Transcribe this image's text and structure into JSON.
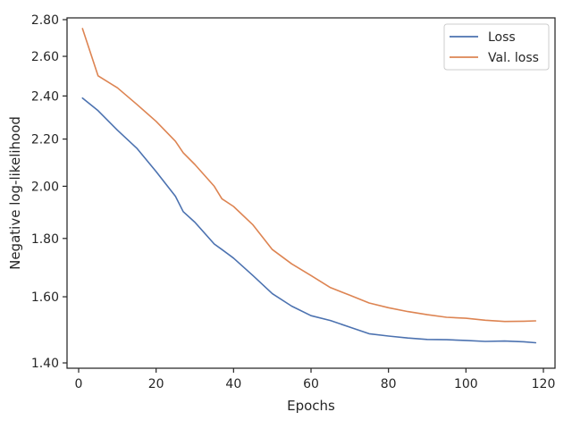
{
  "chart_data": {
    "type": "line",
    "xlabel": "Epochs",
    "ylabel": "Negative log-likelihood",
    "xlim": [
      -3,
      123
    ],
    "ylim": [
      1.385,
      2.81
    ],
    "y_scale": "log",
    "x_ticks": [
      0,
      20,
      40,
      60,
      80,
      100,
      120
    ],
    "y_ticks": [
      1.4,
      1.6,
      1.8,
      2.0,
      2.2,
      2.4,
      2.6,
      2.8
    ],
    "y_tick_labels": [
      "1.40",
      "1.60",
      "1.80",
      "2.00",
      "2.20",
      "2.40",
      "2.60",
      "2.80"
    ],
    "grid": false,
    "legend": "top-right",
    "x": [
      1,
      5,
      10,
      15,
      20,
      25,
      27,
      30,
      35,
      37,
      40,
      45,
      50,
      55,
      60,
      65,
      70,
      75,
      80,
      85,
      90,
      95,
      100,
      105,
      110,
      115,
      118
    ],
    "series": [
      {
        "name": "Loss",
        "color": "#4c72b0",
        "values": [
          2.39,
          2.33,
          2.24,
          2.16,
          2.06,
          1.96,
          1.9,
          1.86,
          1.78,
          1.76,
          1.73,
          1.67,
          1.61,
          1.57,
          1.54,
          1.525,
          1.505,
          1.485,
          1.478,
          1.472,
          1.468,
          1.467,
          1.465,
          1.462,
          1.463,
          1.461,
          1.458
        ]
      },
      {
        "name": "Val. loss",
        "color": "#dd8452",
        "values": [
          2.75,
          2.5,
          2.44,
          2.36,
          2.28,
          2.19,
          2.14,
          2.09,
          2.0,
          1.95,
          1.92,
          1.85,
          1.76,
          1.71,
          1.67,
          1.63,
          1.605,
          1.58,
          1.565,
          1.553,
          1.543,
          1.535,
          1.532,
          1.526,
          1.522,
          1.523,
          1.524
        ]
      }
    ]
  }
}
